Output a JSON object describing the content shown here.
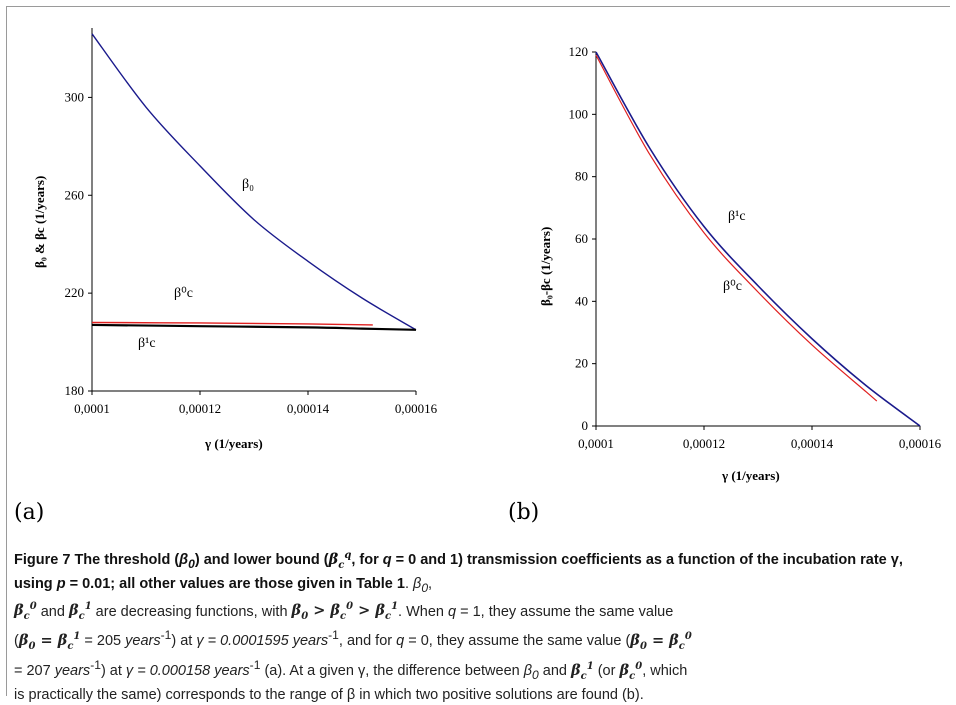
{
  "panel_labels": {
    "a": "(a)",
    "b": "(b)"
  },
  "colors": {
    "beta0_line": "#1a1a8c",
    "beta_c0_line": "#e02020",
    "beta_c1_line": "#000000",
    "beta_c1_b_line": "#1a1a8c"
  },
  "charts": {
    "a": {
      "xlabel": "γ (1/years)",
      "ylabel": "β₀ & βc (1/years)",
      "xticks": [
        "0,0001",
        "0,00012",
        "0,00014",
        "0,00016"
      ],
      "yticks": [
        "180",
        "220",
        "260",
        "300"
      ],
      "labels": {
        "beta0": "β₀",
        "beta_c0": "β⁰c",
        "beta_c1": "β¹c"
      }
    },
    "b": {
      "xlabel": "γ (1/years)",
      "ylabel": "β₀-βc (1/years)",
      "xticks": [
        "0,0001",
        "0,00012",
        "0,00014",
        "0,00016"
      ],
      "yticks": [
        "0",
        "20",
        "40",
        "60",
        "80",
        "100",
        "120"
      ],
      "labels": {
        "beta_c1": "β¹c",
        "beta_c0": "β⁰c"
      }
    }
  },
  "chart_data": [
    {
      "type": "line",
      "xlim": [
        0.0001,
        0.00016
      ],
      "ylim": [
        180,
        330
      ],
      "series": [
        {
          "name": "β₀",
          "x": [
            0.0001,
            0.00011,
            0.00012,
            0.00013,
            0.00014,
            0.00015,
            0.00016
          ],
          "y": [
            326,
            296,
            272,
            250,
            233,
            218,
            205
          ]
        },
        {
          "name": "β⁰c",
          "x": [
            0.0001,
            0.00012,
            0.00014,
            0.000152
          ],
          "y": [
            208,
            207.8,
            207.4,
            207
          ]
        },
        {
          "name": "β¹c",
          "x": [
            0.0001,
            0.00012,
            0.00014,
            0.00015,
            0.00016
          ],
          "y": [
            207,
            206.5,
            206,
            205.5,
            205
          ]
        }
      ]
    },
    {
      "type": "line",
      "xlim": [
        0.0001,
        0.00016
      ],
      "ylim": [
        0,
        120
      ],
      "series": [
        {
          "name": "β¹c",
          "x": [
            0.0001,
            0.00011,
            0.00012,
            0.00013,
            0.00014,
            0.00015,
            0.00016
          ],
          "y": [
            120,
            89,
            64,
            45,
            28,
            13,
            0
          ]
        },
        {
          "name": "β⁰c",
          "x": [
            0.0001,
            0.00011,
            0.00012,
            0.00013,
            0.00014,
            0.00015,
            0.000152
          ],
          "y": [
            119,
            87,
            62,
            43,
            26,
            11,
            8
          ]
        }
      ]
    }
  ],
  "caption": {
    "figure_label": "Figure 7",
    "title_part1": "The threshold (",
    "title_beta0": "β",
    "title_part2": ") and lower bound (",
    "title_part3": ", for ",
    "title_q": "q",
    "title_part4": " = 0 and 1) transmission coefficients as a function of the incubation rate γ, using ",
    "title_p": "p",
    "title_part5": " = 0.01; all other values are those given in Table 1",
    "l2_part1": " and ",
    "l2_part2": " are decreasing functions, with ",
    "l2_part3": ". When ",
    "l2_q": "q",
    "l2_part4": " = 1, they assume the same value",
    "l3_part1": "(",
    "l3_part2": " = 205 ",
    "l3_years": "years",
    "l3_part3": ") at ",
    "l3_gamma": "γ = 0.0001595 years",
    "l3_part4": ", and for ",
    "l3_q": "q",
    "l3_part5": " = 0, they assume the same value (",
    "l4_part1": "= 207 ",
    "l4_years": "years",
    "l4_part2": ") at ",
    "l4_gamma": "γ = 0.000158 years",
    "l4_part3": " (a). At a given γ, the difference between ",
    "l4_part4": " and ",
    "l4_part5": " (or ",
    "l4_part6": ", which",
    "l5_text": "is practically the same) corresponds to the range of β in which two positive solutions are found (b)."
  }
}
